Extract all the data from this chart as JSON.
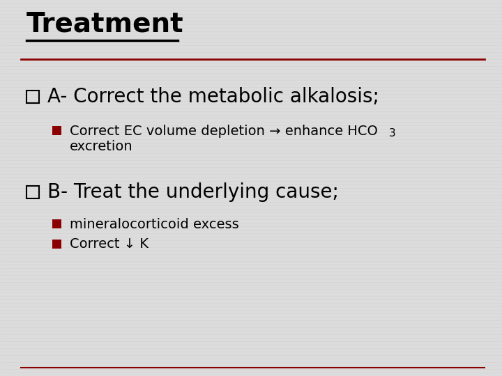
{
  "title": "Treatment",
  "title_fontsize": 28,
  "title_color": "#000000",
  "separator_color": "#8B0000",
  "background_color": "#DCDCDC",
  "bullet_color": "#8B0000",
  "outer_sq_color": "#000000",
  "item_a_text": "A- Correct the metabolic alkalosis;",
  "item_a_fontsize": 20,
  "item_b_text": "B- Treat the underlying cause;",
  "item_b_fontsize": 20,
  "sub_fontsize": 14,
  "sub_a1_line1": "Correct EC volume depletion → enhance HCO",
  "sub_a1_subscript": "3",
  "sub_a1_line2": "excretion",
  "sub_b1_text": "mineralocorticoid excess",
  "sub_b2_text": "Correct ↓ K"
}
